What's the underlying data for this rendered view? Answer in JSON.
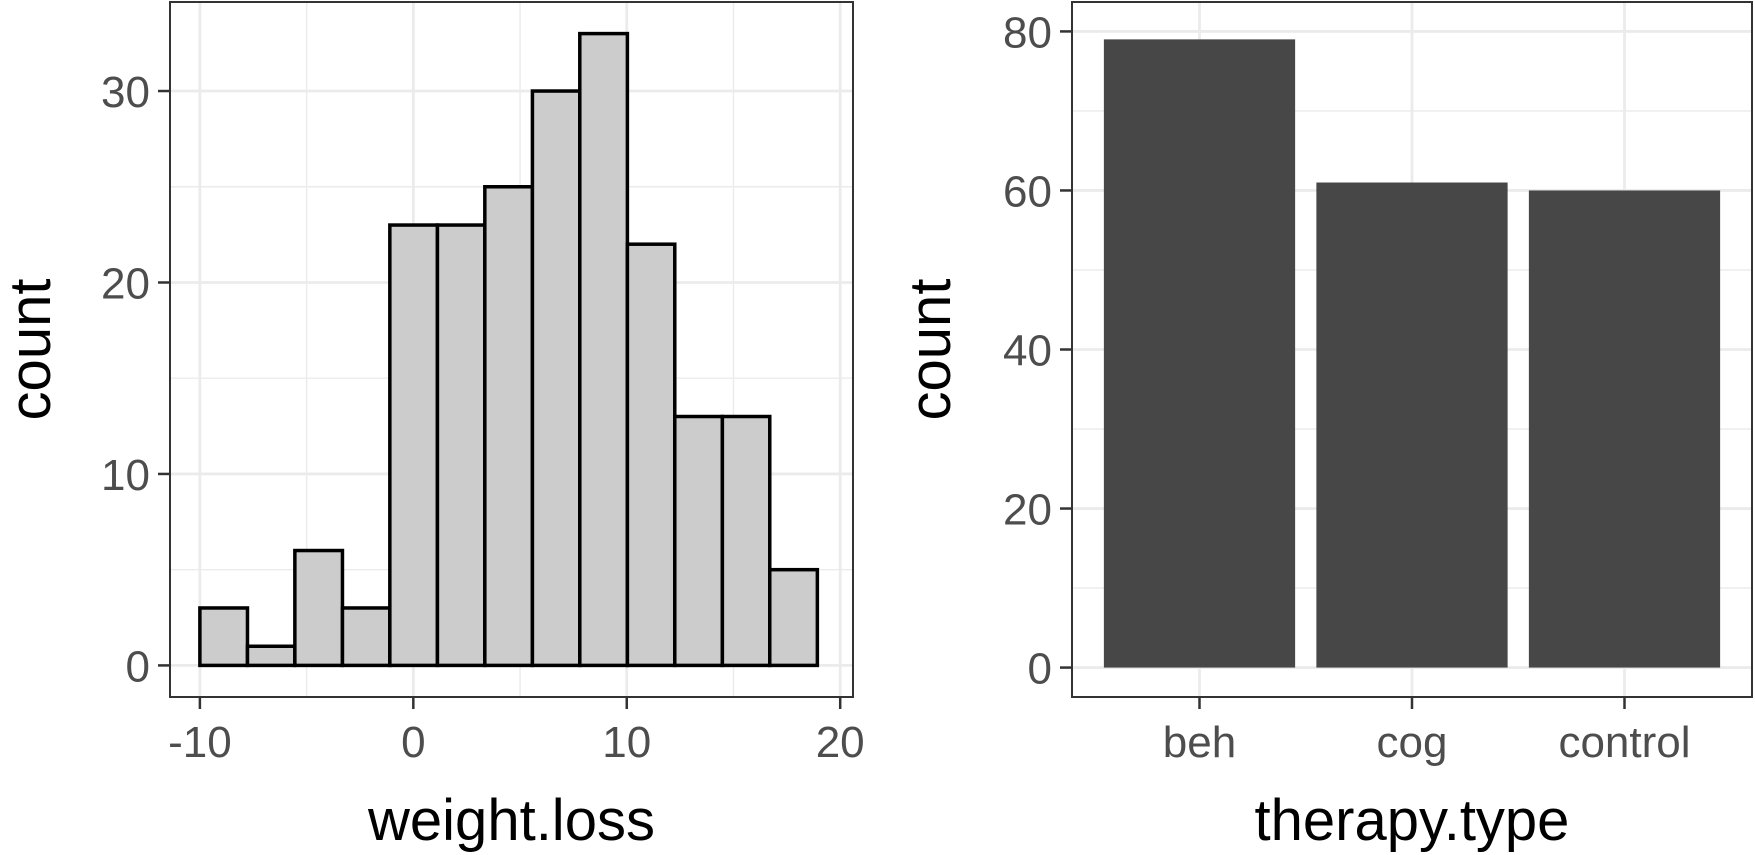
{
  "chart_data": [
    {
      "type": "bar",
      "subtype": "histogram",
      "xlabel": "weight.loss",
      "ylabel": "count",
      "xlim": [
        -11.4,
        20.6
      ],
      "ylim": [
        -1.65,
        34.65
      ],
      "x_ticks": [
        -10,
        0,
        10,
        20
      ],
      "x_tick_labels": [
        "-10",
        "0",
        "10",
        "20"
      ],
      "y_ticks": [
        0,
        10,
        20,
        30
      ],
      "y_tick_labels": [
        "0",
        "10",
        "20",
        "30"
      ],
      "bin_edges": [
        -10.0,
        -7.77,
        -5.55,
        -3.32,
        -1.1,
        1.13,
        3.35,
        5.58,
        7.8,
        10.03,
        12.25,
        14.48,
        16.7,
        18.93
      ],
      "values": [
        3,
        1,
        6,
        3,
        23,
        23,
        25,
        30,
        33,
        22,
        13,
        13,
        5
      ],
      "bar_fill": "#cccccc",
      "bar_stroke": "#000000",
      "grid": true
    },
    {
      "type": "bar",
      "xlabel": "therapy.type",
      "ylabel": "count",
      "categories": [
        "beh",
        "cog",
        "control"
      ],
      "values": [
        79,
        61,
        60
      ],
      "ylim": [
        -3.7,
        83.7
      ],
      "y_ticks": [
        0,
        20,
        40,
        60,
        80
      ],
      "y_tick_labels": [
        "0",
        "20",
        "40",
        "60",
        "80"
      ],
      "bar_fill": "#474747",
      "grid": true
    }
  ]
}
